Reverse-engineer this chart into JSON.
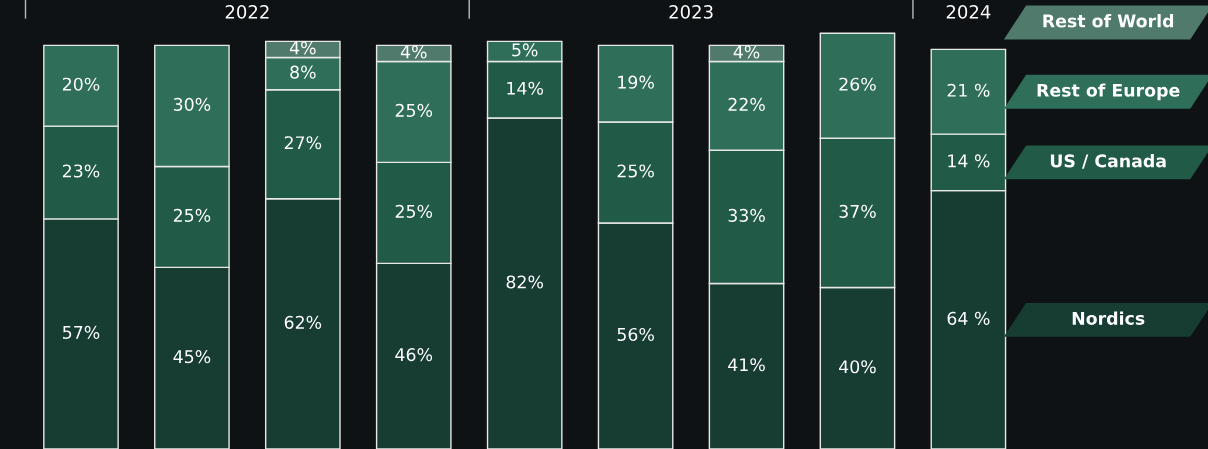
{
  "chart_data": {
    "type": "bar",
    "stacked": true,
    "legend": "right",
    "categories": [
      null,
      null,
      null,
      null,
      null,
      null,
      null,
      null,
      null
    ],
    "series": [
      {
        "name": "Nordics",
        "color": "#173d33",
        "values": [
          57,
          45,
          62,
          46,
          82,
          56,
          41,
          40,
          64
        ],
        "value_labels": [
          "57%",
          "45%",
          "62%",
          "46%",
          "82%",
          "56%",
          "41%",
          "40%",
          "64 %"
        ]
      },
      {
        "name": "US / Canada",
        "color": "#215a46",
        "values": [
          23,
          25,
          27,
          25,
          14,
          25,
          33,
          37,
          14
        ],
        "value_labels": [
          "23%",
          "25%",
          "27%",
          "25%",
          "14%",
          "25%",
          "33%",
          "37%",
          "14 %"
        ]
      },
      {
        "name": "Rest of Europe",
        "color": "#2f6e58",
        "values": [
          20,
          30,
          8,
          25,
          5,
          19,
          22,
          26,
          21
        ],
        "value_labels": [
          "20%",
          "30%",
          "8%",
          "25%",
          "5%",
          "19%",
          "22%",
          "26%",
          "21 %"
        ]
      },
      {
        "name": "Rest of World",
        "color": "#4f7a6c",
        "values": [
          null,
          null,
          4,
          4,
          null,
          null,
          4,
          null,
          null
        ],
        "value_labels": [
          null,
          null,
          "4%",
          "4%",
          null,
          null,
          "4%",
          null,
          null
        ]
      }
    ],
    "annotations": [
      "2022",
      "2023",
      "2024"
    ]
  }
}
